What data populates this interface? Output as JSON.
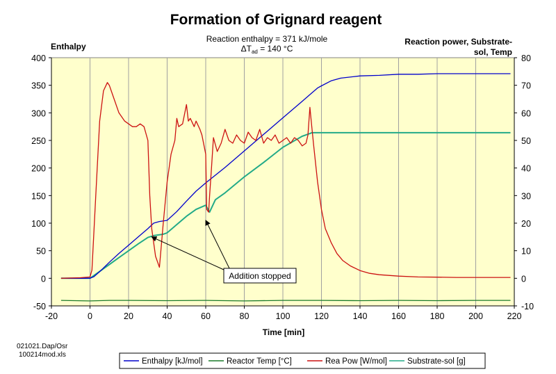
{
  "chart_data": {
    "type": "line",
    "title": "Formation of Grignard reagent",
    "subtitle_line1": "Reaction enthalpy = 371 kJ/mole",
    "subtitle_line2_prefix": "ΔT",
    "subtitle_line2_sub": "ad",
    "subtitle_line2_suffix": " = 140 °C",
    "xlabel": "Time [min]",
    "ylabel_left": "Enthalpy",
    "ylabel_right_line1": "Reaction power, Substrate-",
    "ylabel_right_line2": "sol, Temp",
    "xlim": [
      -20,
      220
    ],
    "ylim_left": [
      -50,
      400
    ],
    "ylim_right": [
      -10,
      80
    ],
    "x_ticks": [
      "-20",
      "0",
      "20",
      "40",
      "60",
      "80",
      "100",
      "120",
      "140",
      "160",
      "180",
      "200",
      "220"
    ],
    "y_ticks_left": [
      "400",
      "350",
      "300",
      "250",
      "200",
      "150",
      "100",
      "50",
      "0",
      "-50"
    ],
    "y_ticks_right": [
      "80",
      "70",
      "60",
      "50",
      "40",
      "30",
      "20",
      "10",
      "0",
      "-10"
    ],
    "grid": "vertical",
    "background": "#ffffcc",
    "annotation": "Addition stopped",
    "annotation_arrow_targets": [
      [
        32,
        15
      ],
      [
        60,
        21
      ]
    ],
    "series": [
      {
        "name": "Enthalpy [kJ/mol]",
        "axis": "left",
        "color": "#0000cc",
        "x": [
          -15,
          0,
          2,
          5,
          10,
          15,
          20,
          25,
          30,
          33,
          36,
          40,
          45,
          50,
          55,
          60,
          70,
          80,
          90,
          100,
          110,
          115,
          118,
          120,
          125,
          130,
          140,
          150,
          160,
          170,
          180,
          200,
          218
        ],
        "y": [
          0,
          0,
          3,
          12,
          29,
          45,
          60,
          75,
          90,
          100,
          103,
          105,
          121,
          140,
          158,
          173,
          201,
          231,
          261,
          291,
          321,
          336,
          345,
          349,
          358,
          363,
          367,
          368,
          370,
          370,
          371,
          371,
          371
        ]
      },
      {
        "name": "Reactor Temp [°C]",
        "axis": "right",
        "color": "#1a7a2a",
        "x": [
          -15,
          0,
          10,
          20,
          40,
          60,
          80,
          100,
          120,
          140,
          160,
          180,
          200,
          218
        ],
        "y": [
          -8,
          -8.2,
          -8,
          -8,
          -8.1,
          -8,
          -8.2,
          -8,
          -8,
          -8.1,
          -8,
          -8.1,
          -8,
          -8
        ]
      },
      {
        "name": "Rea Pow  [W/mol]",
        "axis": "right",
        "color": "#cc1111",
        "x": [
          -15,
          -5,
          0,
          1,
          3,
          5,
          7,
          9,
          10,
          12,
          15,
          18,
          20,
          22,
          24,
          26,
          28,
          30,
          31,
          32,
          34,
          36,
          38,
          40,
          42,
          44,
          45,
          46,
          48,
          50,
          51,
          52,
          54,
          55,
          57,
          58,
          60,
          60.5,
          61.5,
          62,
          63,
          64,
          66,
          68,
          70,
          72,
          74,
          76,
          78,
          80,
          82,
          84,
          86,
          88,
          90,
          92,
          94,
          96,
          98,
          100,
          102,
          104,
          106,
          108,
          110,
          112,
          113,
          114,
          115,
          116,
          118,
          120,
          122,
          125,
          128,
          131,
          135,
          140,
          145,
          150,
          160,
          170,
          180,
          190,
          200,
          210,
          218
        ],
        "y": [
          0,
          0.2,
          0.5,
          3,
          30,
          57,
          68,
          71,
          70,
          66,
          60,
          57,
          56,
          55,
          55,
          56,
          55,
          50,
          30,
          18,
          8,
          4,
          20,
          35,
          45,
          50,
          58,
          55,
          56,
          63,
          57,
          58,
          55,
          57,
          54,
          52,
          45,
          25,
          24,
          30,
          40,
          51,
          46,
          49,
          54,
          50,
          49,
          52,
          50,
          49,
          53,
          51,
          50,
          54,
          49,
          51,
          50,
          52,
          49,
          50,
          51,
          49,
          51,
          50,
          48,
          49,
          52,
          62,
          55,
          48,
          35,
          25,
          18,
          13,
          9,
          6.5,
          4.5,
          2.8,
          1.8,
          1.3,
          0.8,
          0.5,
          0.4,
          0.3,
          0.3,
          0.3,
          0.3
        ]
      },
      {
        "name": "Substrate-sol     [g]",
        "axis": "right",
        "color": "#22aa88",
        "x": [
          -15,
          0,
          5,
          10,
          15,
          20,
          25,
          30,
          33,
          36,
          38,
          40,
          45,
          50,
          55,
          60,
          62,
          65,
          70,
          80,
          90,
          100,
          110,
          114,
          115,
          116,
          120,
          140,
          160,
          180,
          200,
          218
        ],
        "y": [
          0,
          0,
          2.5,
          5,
          7.5,
          10,
          12.5,
          14.8,
          15.5,
          15.8,
          16,
          16.5,
          19.5,
          22.5,
          25,
          26.5,
          24,
          28.5,
          31,
          36.8,
          42,
          47.5,
          51.5,
          52.5,
          52.8,
          52.8,
          52.8,
          52.8,
          52.8,
          52.8,
          52.8,
          52.8
        ]
      }
    ]
  },
  "footnote_line1": "021021.Dap/Osr",
  "footnote_line2": "100214mod.xls"
}
